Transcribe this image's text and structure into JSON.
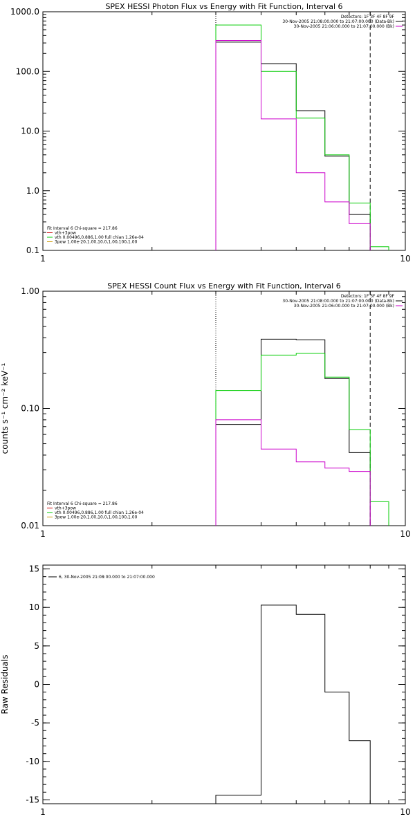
{
  "chart_data": [
    {
      "type": "line",
      "step": true,
      "title": "SPEX HESSI Photon Flux vs Energy with Fit Function, Interval 6",
      "xscale": "log",
      "yscale": "log",
      "xlim": [
        1,
        10
      ],
      "ylim": [
        0.1,
        1000
      ],
      "xticks": [
        1,
        10
      ],
      "xtick_labels": [
        "1",
        "10"
      ],
      "yticks": [
        0.1,
        1,
        10,
        100,
        1000
      ],
      "ytick_labels": [
        "0.1",
        "1.0",
        "10.0",
        "100.0",
        "1000.0"
      ],
      "ylabel": "",
      "vlines": [
        {
          "x": 3,
          "style": "dotted"
        },
        {
          "x": 8,
          "style": "dashed"
        }
      ],
      "info_lines": [
        "Detectors: 1F 3F 4F 8F 9F",
        "30-Nov-2005 21:08:00.000 to 21:07:00.000 (Data-Bk)",
        "30-Nov-2005 21:06:00.000 to 21:07:00.000 (Bk)"
      ],
      "info_colors": [
        "",
        "#000000",
        "#cc00cc"
      ],
      "fit_lines": [
        "Fit Interval 6   Chi-square = 217.86",
        "vth+3pow",
        "vth 0.00496,0.886,1.00  full chian 1.26e-04",
        "3pow 1.00e-20,1.00,10.0,1.00,100,1.00"
      ],
      "fit_colors": [
        "",
        "#cc0000",
        "#00cc00",
        "#cc9900"
      ],
      "series": [
        {
          "color": "#000000",
          "edges": [
            3,
            4,
            5,
            6,
            7,
            8
          ],
          "values": [
            310,
            135,
            22,
            3.8,
            0.4
          ]
        },
        {
          "color": "#00cc00",
          "edges": [
            3,
            4,
            5,
            6,
            7,
            8,
            9
          ],
          "values": [
            600,
            100,
            16.5,
            4.0,
            0.62,
            0.115
          ]
        },
        {
          "color": "#cc00cc",
          "edges": [
            3,
            4,
            5,
            6,
            7,
            8
          ],
          "values": [
            330,
            16,
            2.0,
            0.65,
            0.28
          ]
        }
      ]
    },
    {
      "type": "line",
      "step": true,
      "title": "SPEX HESSI Count Flux vs Energy with Fit Function, Interval 6",
      "xscale": "log",
      "yscale": "log",
      "xlim": [
        1,
        10
      ],
      "ylim": [
        0.01,
        1
      ],
      "xticks": [
        1,
        10
      ],
      "xtick_labels": [
        "1",
        "10"
      ],
      "yticks": [
        0.01,
        0.1,
        1
      ],
      "ytick_labels": [
        "0.01",
        "0.10",
        "1.00"
      ],
      "ylabel": "counts s⁻¹ cm⁻² keV⁻¹",
      "vlines": [
        {
          "x": 3,
          "style": "dotted"
        },
        {
          "x": 8,
          "style": "dashed"
        }
      ],
      "info_lines": [
        "Detectors: 1F 3F 4F 8F 9F",
        "30-Nov-2005 21:08:00.000 to 21:07:00.000 (Data-Bk)",
        "30-Nov-2005 21:06:00.000 to 21:07:00.000 (Bk)"
      ],
      "info_colors": [
        "",
        "#000000",
        "#cc00cc"
      ],
      "fit_lines": [
        "Fit Interval 6   Chi-square = 217.86",
        "vth+3pow",
        "vth 0.00496,0.886,1.00  full chian 1.26e-04",
        "3pow 1.00e-20,1.00,10.0,1.00,100,1.00"
      ],
      "fit_colors": [
        "",
        "#cc0000",
        "#00cc00",
        "#cc9900"
      ],
      "series": [
        {
          "color": "#000000",
          "edges": [
            3,
            4,
            5,
            6,
            7,
            8
          ],
          "values": [
            0.073,
            0.39,
            0.385,
            0.18,
            0.042
          ]
        },
        {
          "color": "#00cc00",
          "edges": [
            3,
            4,
            5,
            6,
            7,
            8,
            9
          ],
          "values": [
            0.142,
            0.285,
            0.295,
            0.185,
            0.066,
            0.016
          ]
        },
        {
          "color": "#cc00cc",
          "edges": [
            3,
            4,
            5,
            6,
            7,
            8
          ],
          "values": [
            0.08,
            0.045,
            0.035,
            0.031,
            0.029
          ]
        }
      ]
    },
    {
      "type": "line",
      "step": true,
      "title": "",
      "xscale": "log",
      "yscale": "linear",
      "xlim": [
        1,
        10
      ],
      "ylim": [
        -15.5,
        15.5
      ],
      "xticks": [
        1,
        10
      ],
      "xtick_labels": [
        "1",
        "10"
      ],
      "yticks": [
        -15,
        -10,
        -5,
        0,
        5,
        10,
        15
      ],
      "ytick_labels": [
        "-15",
        "-10",
        "-5",
        "0",
        "5",
        "10",
        "15"
      ],
      "ylabel": "Raw Residuals",
      "legend_text": "6, 30-Nov-2005 21:08:00.000 to 21:07:00.000",
      "series": [
        {
          "color": "#000000",
          "edges": [
            3,
            4,
            5,
            6,
            7,
            8
          ],
          "values": [
            -14.4,
            10.3,
            9.1,
            -1.0,
            -7.3
          ]
        }
      ]
    }
  ]
}
